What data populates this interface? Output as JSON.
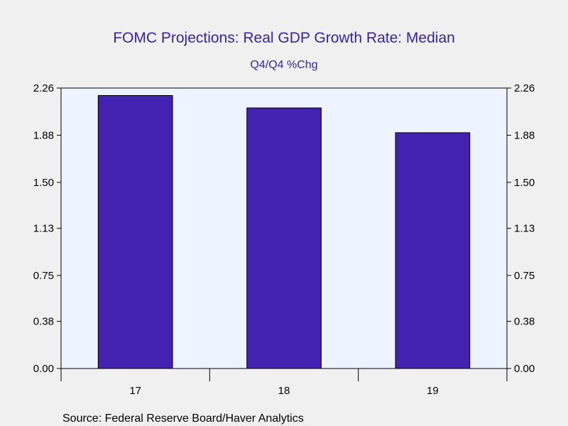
{
  "chart_data": {
    "type": "bar",
    "title": "FOMC Projections: Real GDP Growth Rate: Median",
    "subtitle": "Q4/Q4 %Chg",
    "categories": [
      "17",
      "18",
      "19"
    ],
    "values": [
      2.2,
      2.1,
      1.9
    ],
    "y_ticks": [
      "0.00",
      "0.38",
      "0.75",
      "1.13",
      "1.50",
      "1.88",
      "2.26"
    ],
    "ylim": [
      0,
      2.26
    ],
    "grid": false,
    "legend": "none",
    "source": "Source:  Federal Reserve Board/Haver Analytics",
    "colors": {
      "bar": "#4222b0",
      "title": "#3a22a8",
      "plot_background": "#eef4ff",
      "page_background": "#f0f0f0"
    }
  }
}
